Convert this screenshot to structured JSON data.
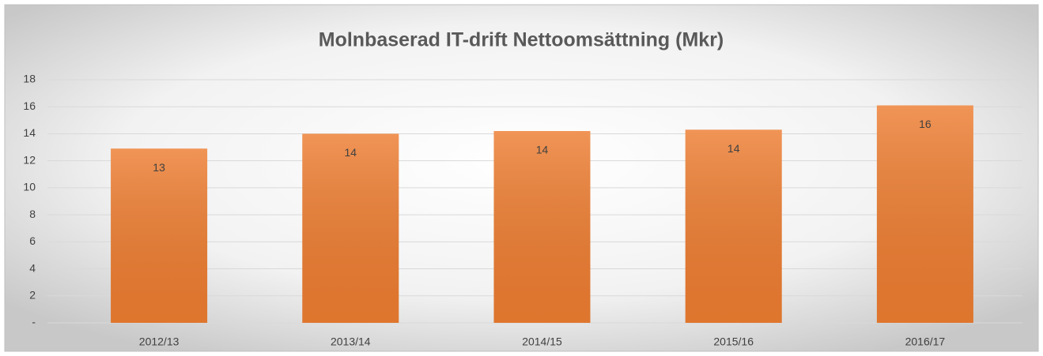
{
  "chart_data": {
    "type": "bar",
    "title": "Molnbaserad IT-drift Nettoomsättning (Mkr)",
    "categories": [
      "2012/13",
      "2013/14",
      "2014/15",
      "2015/16",
      "2016/17"
    ],
    "values": [
      12.9,
      14.0,
      14.2,
      14.3,
      16.1
    ],
    "value_labels": [
      "13",
      "14",
      "14",
      "14",
      "16"
    ],
    "color": "#ed7d31",
    "ylim": [
      0,
      18
    ],
    "yticks": [
      {
        "value": 0,
        "label": "-"
      },
      2,
      4,
      6,
      8,
      10,
      12,
      14,
      16,
      18
    ],
    "grid": true
  }
}
